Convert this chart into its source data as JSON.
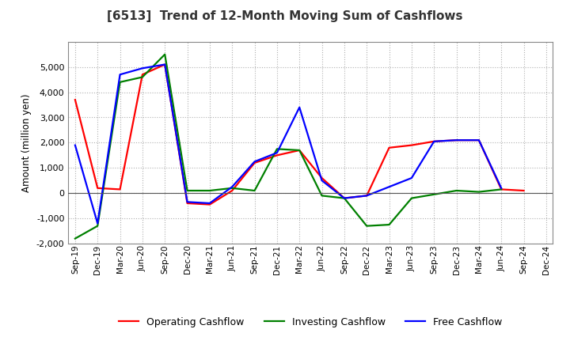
{
  "title": "[6513]  Trend of 12-Month Moving Sum of Cashflows",
  "ylabel": "Amount (million yen)",
  "x_labels": [
    "Sep-19",
    "Dec-19",
    "Mar-20",
    "Jun-20",
    "Sep-20",
    "Dec-20",
    "Mar-21",
    "Jun-21",
    "Sep-21",
    "Dec-21",
    "Mar-22",
    "Jun-22",
    "Sep-22",
    "Dec-22",
    "Mar-23",
    "Jun-23",
    "Sep-23",
    "Dec-23",
    "Mar-24",
    "Jun-24",
    "Sep-24",
    "Dec-24"
  ],
  "operating": [
    3700,
    200,
    150,
    4700,
    5100,
    -400,
    -450,
    100,
    1200,
    1500,
    1700,
    600,
    -200,
    -100,
    1800,
    1900,
    2050,
    2100,
    2100,
    150,
    100,
    null
  ],
  "investing": [
    -1800,
    -1300,
    4400,
    4600,
    5500,
    100,
    100,
    200,
    100,
    1750,
    1700,
    -100,
    -200,
    -1300,
    -1250,
    -200,
    -50,
    100,
    50,
    150,
    null,
    null
  ],
  "free": [
    1900,
    -1200,
    4700,
    4950,
    5100,
    -350,
    -400,
    250,
    1250,
    1600,
    3400,
    500,
    -200,
    -100,
    250,
    600,
    2050,
    2100,
    2100,
    200,
    null,
    null
  ],
  "ylim": [
    -2000,
    6000
  ],
  "yticks": [
    -2000,
    -1000,
    0,
    1000,
    2000,
    3000,
    4000,
    5000
  ],
  "operating_color": "#ff0000",
  "investing_color": "#008000",
  "free_color": "#0000ff",
  "background_color": "#ffffff",
  "grid_color": "#b0b0b0",
  "line_width": 1.6,
  "title_color": "#333333",
  "title_fontsize": 11
}
